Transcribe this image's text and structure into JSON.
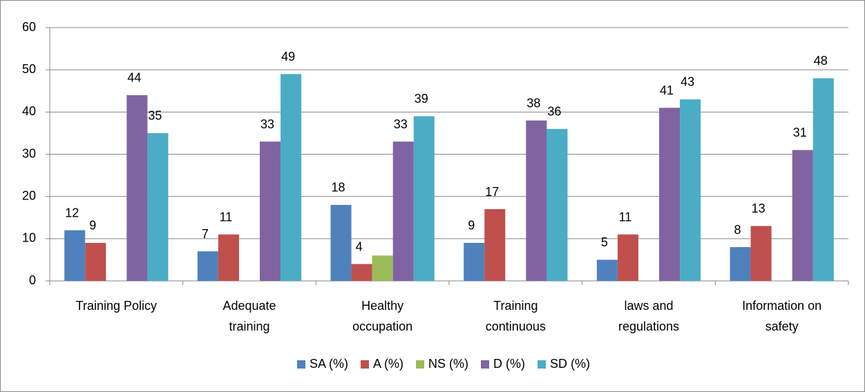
{
  "chart_data": {
    "type": "bar",
    "categories": [
      "Training Policy",
      "Adequate training",
      "Healthy occupation",
      "Training continuous",
      "laws and regulations",
      "Information on safety"
    ],
    "series": [
      {
        "name": "SA (%)",
        "color": "#4f81bd",
        "values": [
          12,
          7,
          18,
          9,
          5,
          8
        ]
      },
      {
        "name": "A (%)",
        "color": "#c0504d",
        "values": [
          9,
          11,
          4,
          17,
          11,
          13
        ]
      },
      {
        "name": "NS (%)",
        "color": "#9bbb59",
        "values": [
          null,
          null,
          6,
          null,
          null,
          null
        ],
        "show_labels": false
      },
      {
        "name": "D (%)",
        "color": "#8064a2",
        "values": [
          44,
          33,
          33,
          38,
          41,
          31
        ]
      },
      {
        "name": "SD (%)",
        "color": "#4bacc6",
        "values": [
          35,
          49,
          39,
          36,
          43,
          48
        ]
      }
    ],
    "ylim": [
      0,
      60
    ],
    "yticks": [
      0,
      10,
      20,
      30,
      40,
      50,
      60
    ],
    "grid": true,
    "legend": "bottom"
  }
}
